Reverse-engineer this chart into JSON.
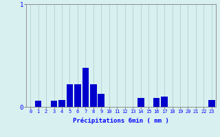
{
  "xlabel": "Précipitations 6min ( mm )",
  "background_color": "#d8f0f0",
  "bar_color": "#0000cc",
  "grid_color": "#b0d0d0",
  "ylim": [
    0,
    1.0
  ],
  "xlim": [
    -0.5,
    23.5
  ],
  "yticks": [
    0,
    1
  ],
  "xticks": [
    0,
    1,
    2,
    3,
    4,
    5,
    6,
    7,
    8,
    9,
    10,
    11,
    12,
    13,
    14,
    15,
    16,
    17,
    18,
    19,
    20,
    21,
    22,
    23
  ],
  "values": [
    0.0,
    0.06,
    0.0,
    0.06,
    0.07,
    0.22,
    0.22,
    0.38,
    0.22,
    0.13,
    0.0,
    0.0,
    0.0,
    0.0,
    0.09,
    0.0,
    0.09,
    0.1,
    0.0,
    0.0,
    0.0,
    0.0,
    0.0,
    0.07
  ]
}
